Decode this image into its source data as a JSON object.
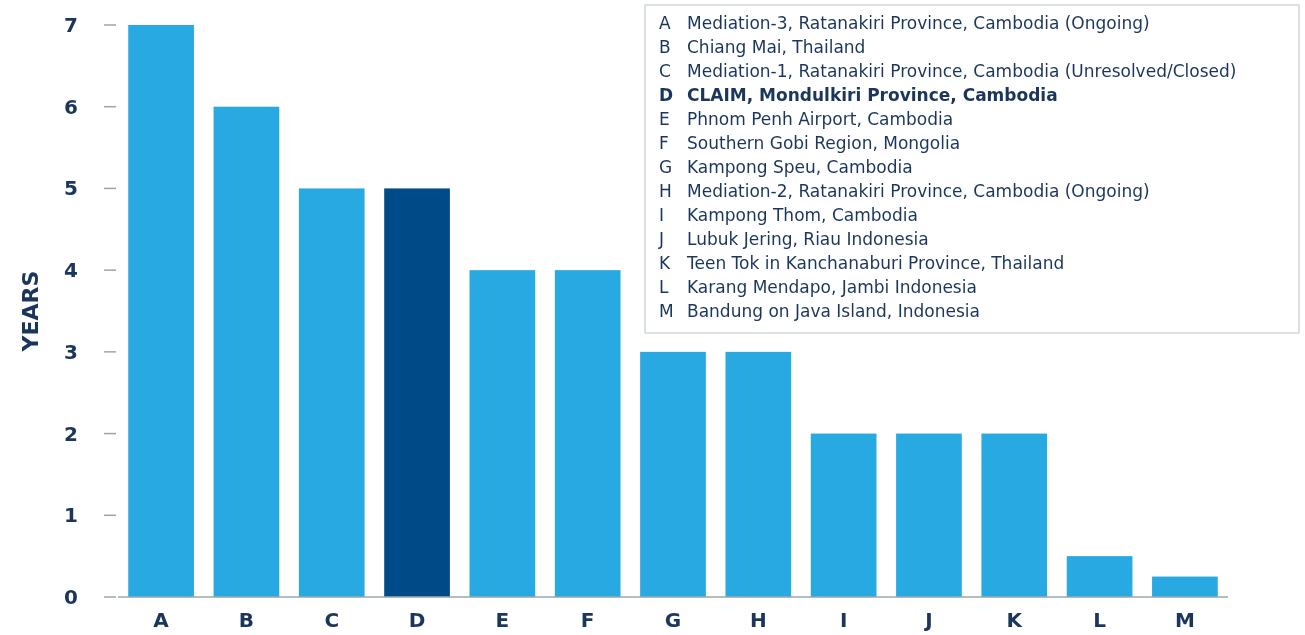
{
  "chart_data": {
    "type": "bar",
    "ylabel": "YEARS",
    "categories": [
      "A",
      "B",
      "C",
      "D",
      "E",
      "F",
      "G",
      "H",
      "I",
      "J",
      "K",
      "L",
      "M"
    ],
    "values": [
      7,
      6,
      5,
      5,
      4,
      4,
      3,
      3,
      2,
      2,
      2,
      0.5,
      0.25
    ],
    "colors": [
      "#29a9e1",
      "#29a9e1",
      "#29a9e1",
      "#004b87",
      "#29a9e1",
      "#29a9e1",
      "#29a9e1",
      "#29a9e1",
      "#29a9e1",
      "#29a9e1",
      "#29a9e1",
      "#29a9e1",
      "#29a9e1"
    ],
    "ylim": [
      0,
      7
    ],
    "yticks": [
      0,
      1,
      2,
      3,
      4,
      5,
      6,
      7
    ],
    "grid": false,
    "annotations": [
      "A Mediation-3, Ratanakiri Province, Cambodia (Ongoing)",
      "B Chiang Mai, Thailand",
      "C Mediation-1, Ratanakiri Province, Cambodia (Unresolved/Closed)",
      "D CLAIM, Mondulkiri Province, Cambodia",
      "E Phnom Penh Airport, Cambodia",
      "F Southern Gobi Region, Mongolia",
      "G Kampong Speu, Cambodia",
      "H Mediation-2, Ratanakiri Province, Cambodia (Ongoing)",
      "I Kampong Thom, Cambodia",
      "J Lubuk Jering, Riau Indonesia",
      "K Teen Tok in Kanchanaburi Province, Thailand",
      "L Karang Mendapo, Jambi Indonesia",
      "M Bandung on Java Island, Indonesia"
    ]
  }
}
